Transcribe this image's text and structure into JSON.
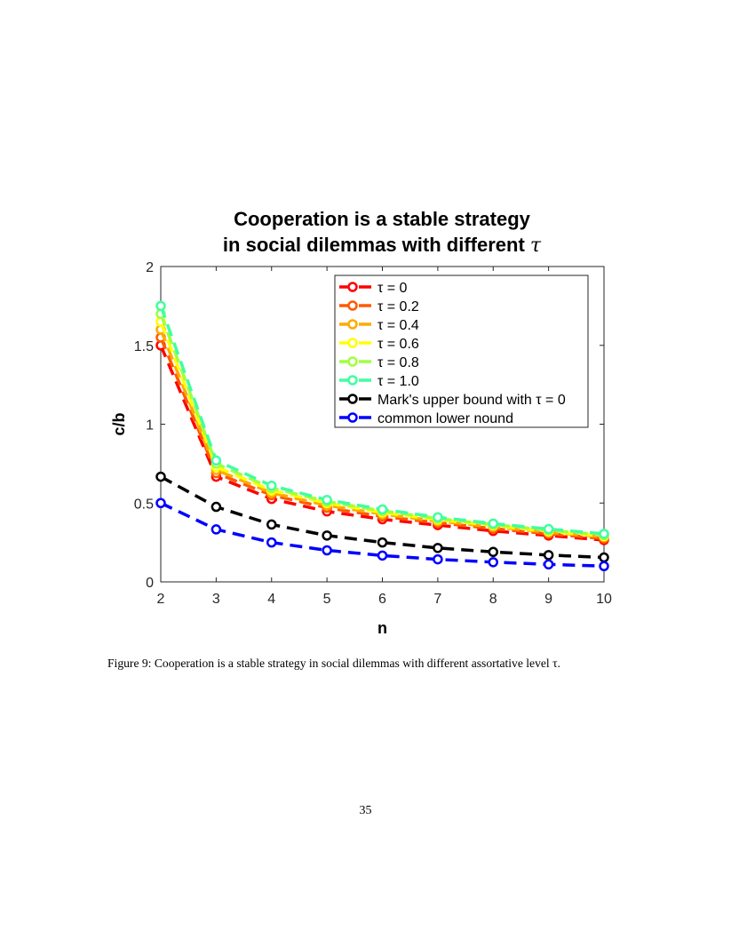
{
  "page": {
    "caption": "Figure 9: Cooperation is a stable strategy in social dilemmas with different assortative level τ.",
    "page_number": "35"
  },
  "chart_data": {
    "type": "line",
    "title_line1": "Cooperation is a stable strategy",
    "title_line2": "in social dilemmas with different ",
    "title_symbol": "τ",
    "xlabel": "n",
    "ylabel": "c/b",
    "xlim": [
      2,
      10
    ],
    "ylim": [
      0,
      2
    ],
    "xticks": [
      2,
      3,
      4,
      5,
      6,
      7,
      8,
      9,
      10
    ],
    "yticks": [
      0,
      0.5,
      1,
      1.5,
      2
    ],
    "ytick_labels": [
      "0",
      "0.5",
      "1",
      "1.5",
      "2"
    ],
    "grid": false,
    "legend_position": "top-right",
    "x": [
      2,
      3,
      4,
      5,
      6,
      7,
      8,
      9,
      10
    ],
    "series": [
      {
        "name": "τ = 0",
        "color": "#ff0000",
        "values": [
          1.5,
          0.667,
          0.526,
          0.447,
          0.397,
          0.36,
          0.323,
          0.294,
          0.265
        ]
      },
      {
        "name": "τ = 0.2",
        "color": "#ff5a00",
        "values": [
          1.55,
          0.69,
          0.55,
          0.47,
          0.415,
          0.375,
          0.338,
          0.305,
          0.275
        ]
      },
      {
        "name": "τ = 0.4",
        "color": "#ffaa00",
        "values": [
          1.6,
          0.71,
          0.565,
          0.485,
          0.43,
          0.385,
          0.35,
          0.315,
          0.285
        ]
      },
      {
        "name": "τ = 0.6",
        "color": "#ffff00",
        "values": [
          1.65,
          0.73,
          0.58,
          0.5,
          0.44,
          0.395,
          0.358,
          0.32,
          0.29
        ]
      },
      {
        "name": "τ = 0.8",
        "color": "#a0ff40",
        "values": [
          1.7,
          0.75,
          0.595,
          0.51,
          0.45,
          0.402,
          0.364,
          0.328,
          0.297
        ]
      },
      {
        "name": "τ = 1.0",
        "color": "#40ff9f",
        "values": [
          1.75,
          0.77,
          0.61,
          0.52,
          0.46,
          0.41,
          0.37,
          0.335,
          0.305
        ]
      },
      {
        "name": "Mark's upper bound with   τ = 0",
        "color": "#000000",
        "values": [
          0.667,
          0.476,
          0.364,
          0.294,
          0.25,
          0.215,
          0.19,
          0.17,
          0.155
        ]
      },
      {
        "name": "common lower nound",
        "color": "#0000ff",
        "values": [
          0.5,
          0.333,
          0.25,
          0.2,
          0.167,
          0.143,
          0.125,
          0.111,
          0.1
        ]
      }
    ]
  }
}
